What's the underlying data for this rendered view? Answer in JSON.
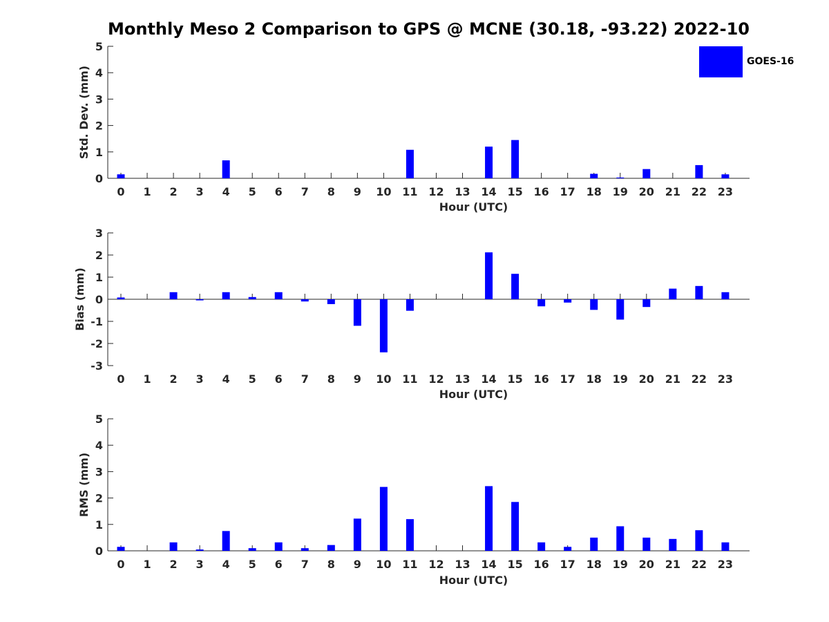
{
  "title": "Monthly Meso 2 Comparison to GPS @ MCNE (30.18, -93.22) 2022-10",
  "legend": {
    "label": "GOES-16",
    "color": "#0000ff"
  },
  "chart_data": [
    {
      "type": "bar",
      "name": "std_dev",
      "ylabel": "Std. Dev. (mm)",
      "xlabel": "Hour (UTC)",
      "ylim": [
        0,
        5
      ],
      "yticks": [
        0,
        1,
        2,
        3,
        4,
        5
      ],
      "categories": [
        "0",
        "1",
        "2",
        "3",
        "4",
        "5",
        "6",
        "7",
        "8",
        "9",
        "10",
        "11",
        "12",
        "13",
        "14",
        "15",
        "16",
        "17",
        "18",
        "19",
        "20",
        "21",
        "22",
        "23"
      ],
      "series": [
        {
          "values": [
            0.15,
            0,
            0,
            0,
            0.68,
            0,
            0,
            0,
            0,
            0,
            0,
            1.08,
            0,
            0,
            1.2,
            1.45,
            0,
            0,
            0.17,
            0.03,
            0.35,
            0,
            0.5,
            0.15
          ],
          "color": "#0000ff"
        }
      ],
      "grid": false
    },
    {
      "type": "bar",
      "name": "bias",
      "ylabel": "Bias (mm)",
      "xlabel": "Hour (UTC)",
      "ylim": [
        -3,
        3
      ],
      "yticks": [
        -3,
        -2,
        -1,
        0,
        1,
        2,
        3
      ],
      "categories": [
        "0",
        "1",
        "2",
        "3",
        "4",
        "5",
        "6",
        "7",
        "8",
        "9",
        "10",
        "11",
        "12",
        "13",
        "14",
        "15",
        "16",
        "17",
        "18",
        "19",
        "20",
        "21",
        "22",
        "23"
      ],
      "series": [
        {
          "values": [
            0.08,
            0,
            0.32,
            -0.05,
            0.32,
            0.1,
            0.32,
            -0.1,
            -0.22,
            -1.2,
            -2.4,
            -0.52,
            0,
            0,
            2.12,
            1.15,
            -0.32,
            -0.15,
            -0.48,
            -0.92,
            -0.35,
            0.48,
            0.6,
            0.32
          ],
          "color": "#0000ff"
        }
      ],
      "grid": false
    },
    {
      "type": "bar",
      "name": "rms",
      "ylabel": "RMS (mm)",
      "xlabel": "Hour (UTC)",
      "ylim": [
        0,
        5
      ],
      "yticks": [
        0,
        1,
        2,
        3,
        4,
        5
      ],
      "categories": [
        "0",
        "1",
        "2",
        "3",
        "4",
        "5",
        "6",
        "7",
        "8",
        "9",
        "10",
        "11",
        "12",
        "13",
        "14",
        "15",
        "16",
        "17",
        "18",
        "19",
        "20",
        "21",
        "22",
        "23"
      ],
      "series": [
        {
          "values": [
            0.15,
            0,
            0.32,
            0.05,
            0.75,
            0.1,
            0.32,
            0.1,
            0.22,
            1.22,
            2.42,
            1.2,
            0,
            0,
            2.45,
            1.85,
            0.32,
            0.15,
            0.5,
            0.93,
            0.5,
            0.45,
            0.78,
            0.32
          ],
          "color": "#0000ff"
        }
      ],
      "grid": false
    }
  ]
}
